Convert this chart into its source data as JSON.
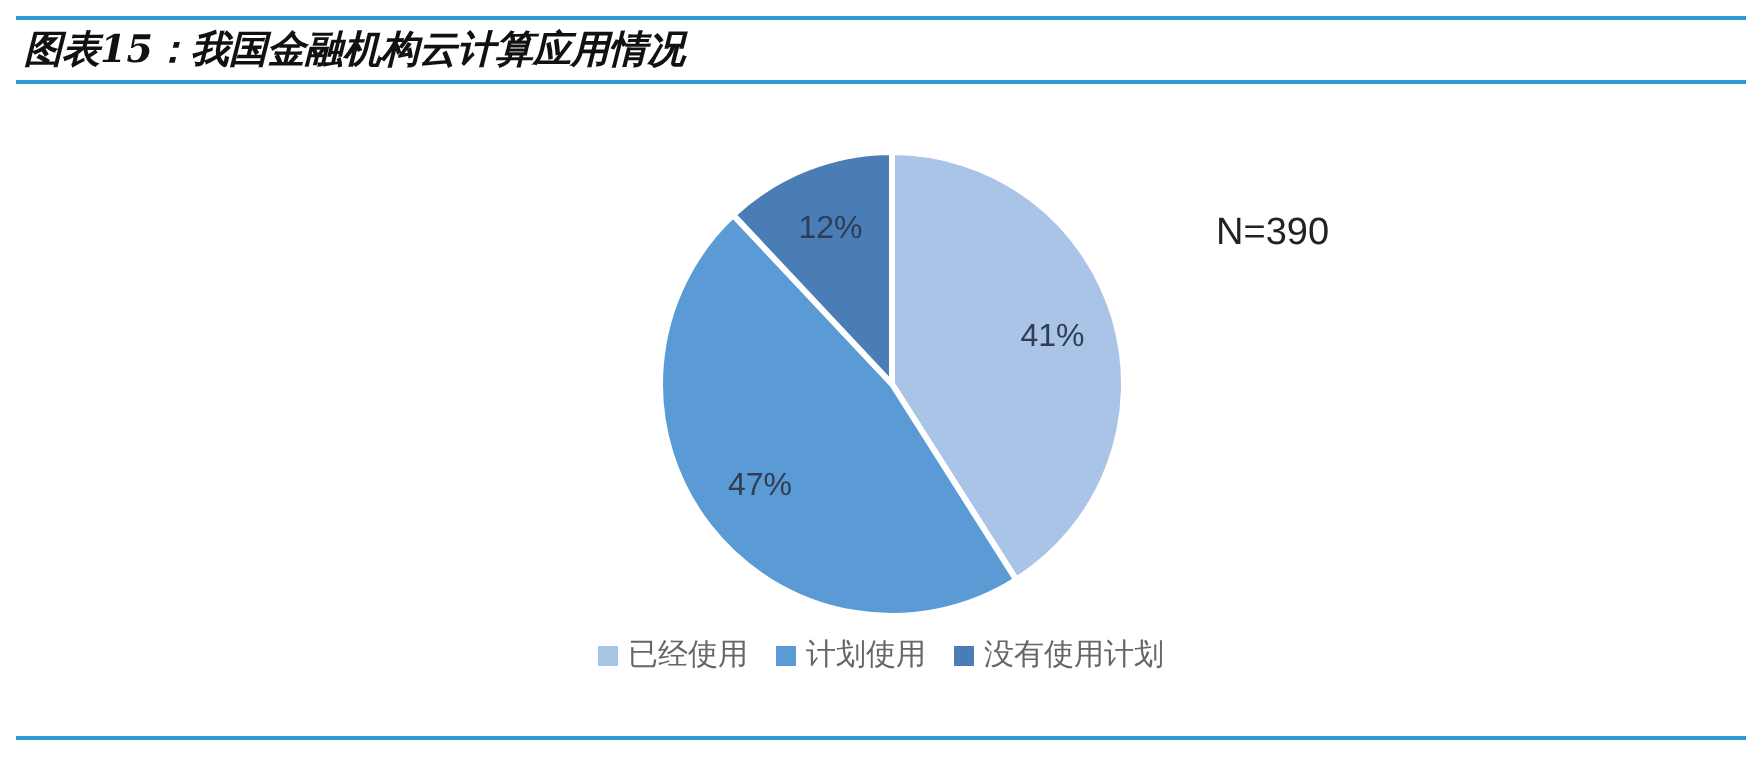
{
  "chart_data": {
    "type": "pie",
    "title": "图表15：我国金融机构云计算应用情况",
    "categories": [
      "已经使用",
      "计划使用",
      "没有使用计划"
    ],
    "values": [
      41,
      47,
      12
    ],
    "colors": [
      "#a9c4e6",
      "#5b9bd5",
      "#4a7db5"
    ],
    "value_labels": [
      "41%",
      "47%",
      "12%"
    ],
    "annotations": [
      "N=390"
    ],
    "legend": "bottom"
  }
}
